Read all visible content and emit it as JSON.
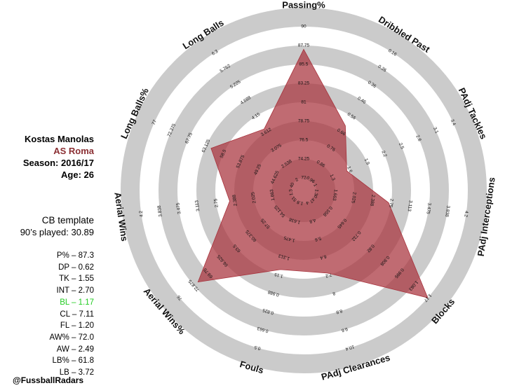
{
  "player": {
    "name": "Kostas Manolas",
    "team": "AS Roma",
    "season": "Season: 2016/17",
    "age": "Age: 26"
  },
  "template": {
    "title": "CB template",
    "played": "90’s played: 30.89"
  },
  "stats": [
    {
      "label": "P% – 87.3",
      "highlight": false
    },
    {
      "label": "DP – 0.62",
      "highlight": false
    },
    {
      "label": "TK – 1.55",
      "highlight": false
    },
    {
      "label": "INT – 2.70",
      "highlight": false
    },
    {
      "label": "BL – 1.17",
      "highlight": true
    },
    {
      "label": "CL – 7.11",
      "highlight": false
    },
    {
      "label": "FL – 1.20",
      "highlight": false
    },
    {
      "label": "AW% – 72.0",
      "highlight": false
    },
    {
      "label": "AW – 2.49",
      "highlight": false
    },
    {
      "label": "LB% – 61.8",
      "highlight": false
    },
    {
      "label": "LB – 3.72",
      "highlight": false
    }
  ],
  "credit": "@FussballRadars",
  "colors": {
    "fill": "#a8323c",
    "ring_gray": "#cbcbcb",
    "highlight": "#22cc22",
    "team": "#8b2f33"
  },
  "chart_data": {
    "type": "radar",
    "axes": [
      {
        "label": "Passing%",
        "ticks": [
          "72",
          "74.25",
          "76.5",
          "78.75",
          "81",
          "83.25",
          "85.5",
          "87.75",
          "90"
        ],
        "value": 87.3
      },
      {
        "label": "Dribbled Past",
        "ticks": [
          "0.96",
          "0.86",
          "0.76",
          "0.66",
          "0.56",
          "0.46",
          "0.36",
          "0.26",
          "0.16"
        ],
        "value": 0.62
      },
      {
        "label": "PAdj Tackles",
        "ticks": [
          "1",
          "1.3",
          "1.6",
          "1.9",
          "2.2",
          "2.5",
          "2.8",
          "3.1",
          "3.4"
        ],
        "value": 1.55
      },
      {
        "label": "PAdj Interceptions",
        "ticks": [
          "1.3",
          "1.663",
          "2.025",
          "2.388",
          "2.75",
          "3.113",
          "3.475",
          "3.838",
          "4.2"
        ],
        "value": 2.7
      },
      {
        "label": "Blocks",
        "ticks": [
          "0.47",
          "0.558",
          "0.645",
          "0.732",
          "0.82",
          "0.908",
          "0.995",
          "1.083",
          "1.17"
        ],
        "value": 1.17
      },
      {
        "label": "PAdj Clearances",
        "ticks": [
          "4",
          "4.8",
          "5.6",
          "6.4",
          "7.2",
          "8",
          "8.8",
          "9.6",
          "10.4"
        ],
        "value": 7.11
      },
      {
        "label": "Fouls",
        "ticks": [
          "1.8",
          "1.638",
          "1.475",
          "1.313",
          "1.15",
          "0.988",
          "0.825",
          "0.663",
          "0.5"
        ],
        "value": 1.2
      },
      {
        "label": "Aerial Wins%",
        "ticks": [
          "51",
          "54.125",
          "57.25",
          "60.375",
          "63.5",
          "66.625",
          "69.75",
          "72.875",
          "76"
        ],
        "value": 72.0
      },
      {
        "label": "Aerial Wins",
        "ticks": [
          "1.3",
          "1.663",
          "2.025",
          "2.388",
          "2.75",
          "3.113",
          "3.475",
          "3.838",
          "4.2"
        ],
        "value": 2.49
      },
      {
        "label": "Long Balls%",
        "ticks": [
          "40",
          "44.625",
          "49.25",
          "53.875",
          "58.5",
          "63.125",
          "67.75",
          "72.375",
          "77"
        ],
        "value": 61.8
      },
      {
        "label": "Long Balls",
        "ticks": [
          "2",
          "2.538",
          "3.075",
          "3.612",
          "4.15",
          "4.688",
          "5.225",
          "5.762",
          "6.3"
        ],
        "value": 3.72
      }
    ]
  }
}
